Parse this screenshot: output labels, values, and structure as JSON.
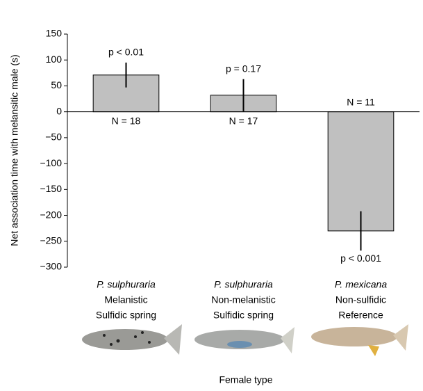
{
  "chart_data": {
    "type": "bar",
    "y_label": "Net association time with melansitic male (s)",
    "x_label": "Female type",
    "categories": [
      [
        "P. sulphuraria",
        "Melanistic",
        "Sulfidic spring"
      ],
      [
        "P. sulphuraria",
        "Non-melanistic",
        "Sulfidic spring"
      ],
      [
        "P. mexicana",
        "Non-sulfidic",
        "Reference"
      ]
    ],
    "values": [
      71,
      32,
      -230
    ],
    "errors": [
      24,
      31,
      38
    ],
    "p_labels": [
      "p < 0.01",
      "p = 0.17",
      "p < 0.001"
    ],
    "n_labels": [
      "N = 18",
      "N = 17",
      "N = 11"
    ],
    "color": "#c0c0c0",
    "ylim": [
      -300,
      150
    ],
    "yticks": [
      {
        "value": -300,
        "label": "−300"
      },
      {
        "value": -250,
        "label": "−250"
      },
      {
        "value": -200,
        "label": "−200"
      },
      {
        "value": -150,
        "label": "−150"
      },
      {
        "value": -100,
        "label": "−100"
      },
      {
        "value": -50,
        "label": "−50"
      },
      0,
      50,
      100,
      150
    ]
  }
}
